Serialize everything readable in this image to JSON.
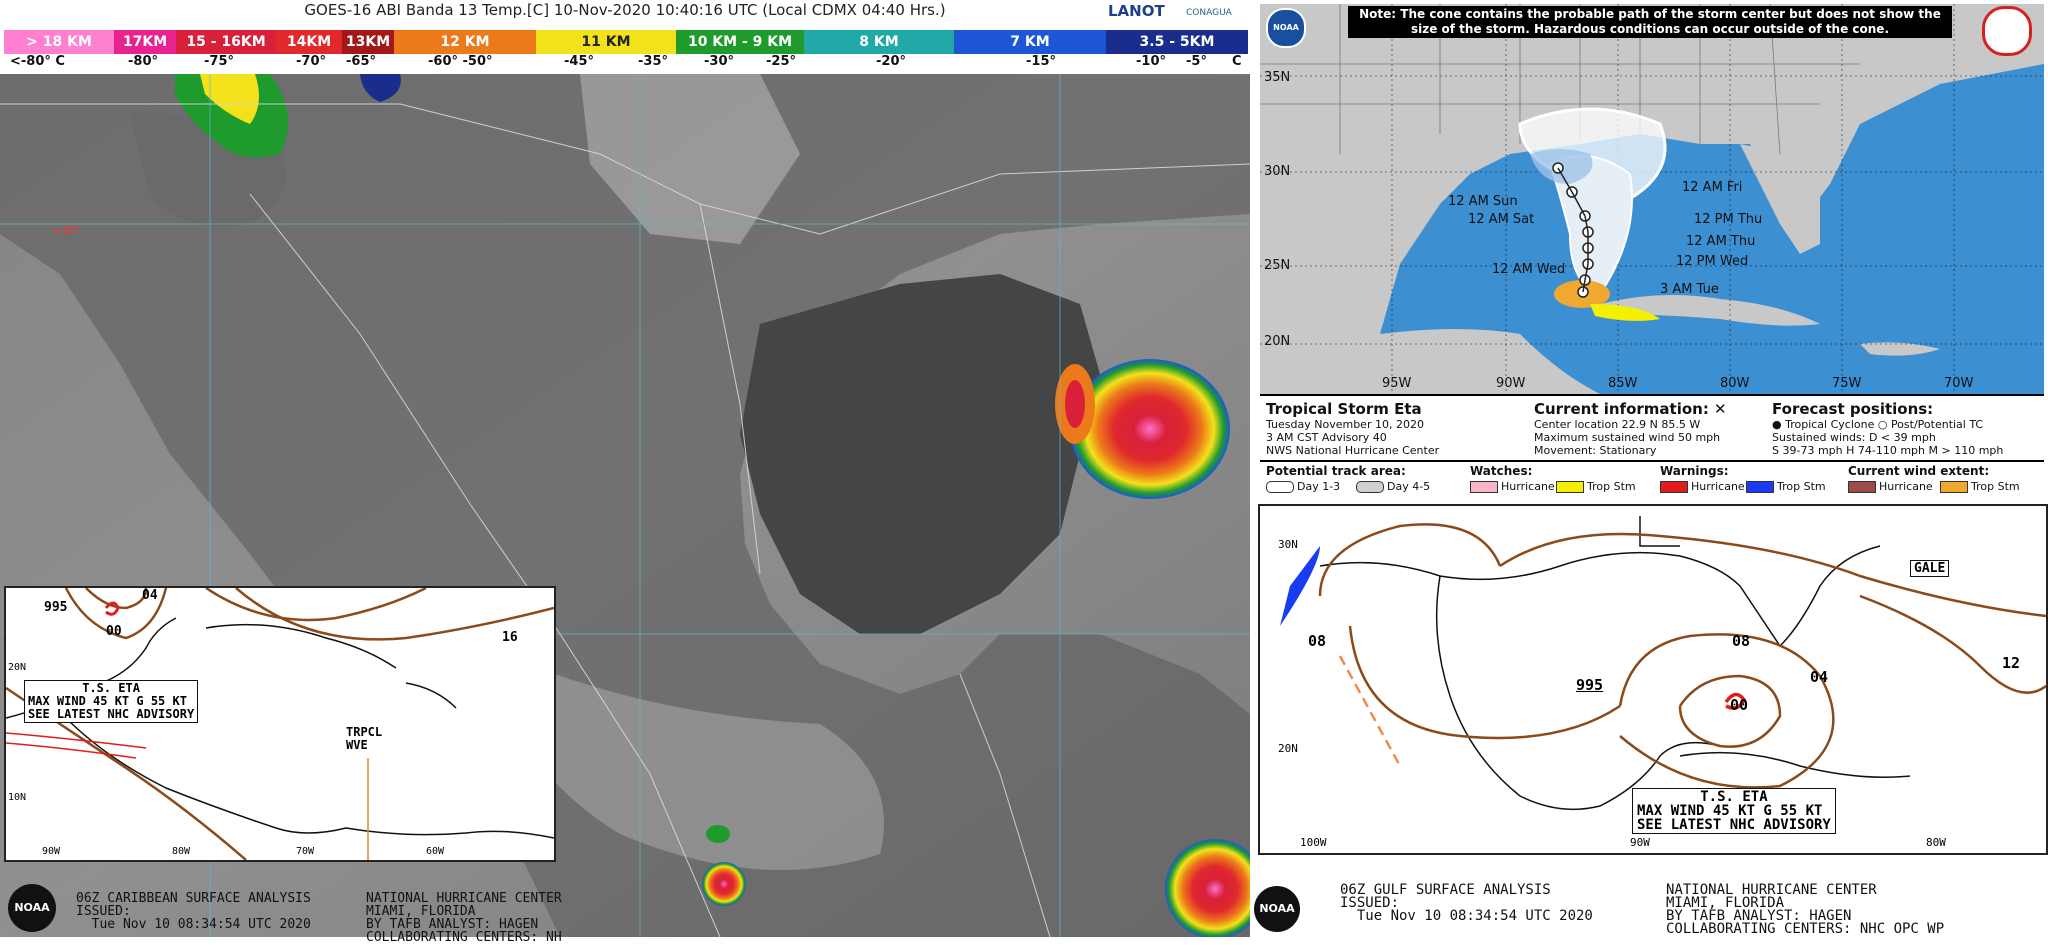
{
  "goes": {
    "title": "GOES-16 ABI Banda 13 Temp.[C] 10-Nov-2020 10:40:16 UTC (Local CDMX  04:40 Hrs.)",
    "logos": [
      "LANOT",
      "CONAGUA"
    ],
    "scale_segments": [
      {
        "label": "> 18 KM",
        "color": "#ff7fd0"
      },
      {
        "label": "17KM",
        "color": "#e8238f"
      },
      {
        "label": "15 - 16KM",
        "color": "#d8203a"
      },
      {
        "label": "14KM",
        "color": "#e0282d"
      },
      {
        "label": "13KM",
        "color": "#a21818"
      },
      {
        "label": "12 KM",
        "color": "#ec7a1a"
      },
      {
        "label": "11 KM",
        "color": "#f3e21a"
      },
      {
        "label": "10 KM - 9 KM",
        "color": "#1f9a2d"
      },
      {
        "label": "8 KM",
        "color": "#23a8a8"
      },
      {
        "label": "7 KM",
        "color": "#1e57d6"
      },
      {
        "label": "3.5 - 5KM",
        "color": "#1a2c8c"
      }
    ],
    "temps": [
      "<-80° C",
      "-80°",
      "-75°",
      "-70°",
      "-65°",
      "-60° -50°",
      "-45°",
      "-35°",
      "-30°",
      "-25°",
      "-20°",
      "-15°",
      "-10°",
      "-5°",
      "C"
    ],
    "map_label": "+30°"
  },
  "caribbean": {
    "labels": [
      "995",
      "04",
      "00",
      "16",
      "TRPCL WVE"
    ],
    "storm_box": [
      "T.S. ETA",
      "MAX WIND 45 KT G 55 KT",
      "SEE LATEST NHC ADVISORY"
    ],
    "lon_labels": [
      "90W",
      "80W",
      "70W",
      "60W"
    ],
    "lat_labels": [
      "20N",
      "10N"
    ],
    "footer_left": "06Z CARIBBEAN SURFACE ANALYSIS\nISSUED:\n  Tue Nov 10 08:34:54 UTC 2020",
    "footer_right": "NATIONAL HURRICANE CENTER\nMIAMI, FLORIDA\nBY TAFB ANALYST: HAGEN\nCOLLABORATING CENTERS: NH"
  },
  "cone": {
    "note": "Note: The cone contains the probable path of the storm center but does not show the size of the storm. Hazardous conditions can occur outside of the cone.",
    "lat_labels": [
      "35N",
      "30N",
      "25N",
      "20N"
    ],
    "lon_labels": [
      "95W",
      "90W",
      "85W",
      "80W",
      "75W",
      "70W"
    ],
    "forecast_labels": [
      "12 AM Fri",
      "12 AM Sun",
      "12 AM Sat",
      "12 PM Thu",
      "12 AM Thu",
      "12 PM Wed",
      "12 AM Wed",
      "3 AM Tue"
    ],
    "storm_name": "Tropical Storm Eta",
    "storm_lines": [
      "Tuesday November 10, 2020",
      "3 AM CST Advisory 40",
      "NWS National Hurricane Center"
    ],
    "current_title": "Current information: ✕",
    "current_lines": [
      "Center location 22.9 N 85.5 W",
      "Maximum sustained wind 50 mph",
      "Movement: Stationary"
    ],
    "forecast_title": "Forecast positions:",
    "forecast_lines": [
      "● Tropical Cyclone   ○ Post/Potential TC",
      "Sustained winds:     D < 39 mph",
      "S 39-73 mph  H 74-110 mph  M > 110 mph"
    ],
    "track_title": "Potential track area:",
    "track_items": [
      "Day 1-3",
      "Day 4-5"
    ],
    "watches_title": "Watches:",
    "watches": [
      {
        "label": "Hurricane",
        "color": "#f7b6c8"
      },
      {
        "label": "Trop Stm",
        "color": "#f5f000"
      }
    ],
    "warnings_title": "Warnings:",
    "warnings": [
      {
        "label": "Hurricane",
        "color": "#e21b1b"
      },
      {
        "label": "Trop Stm",
        "color": "#1a3cf0"
      }
    ],
    "wind_title": "Current wind extent:",
    "wind": [
      {
        "label": "Hurricane",
        "color": "#9c4a4a"
      },
      {
        "label": "Trop Stm",
        "color": "#f0a830"
      }
    ]
  },
  "gulf": {
    "labels": [
      "30N",
      "08",
      "08",
      "04",
      "12",
      "995",
      "00",
      "20N",
      "GALE"
    ],
    "storm_box": [
      "T.S. ETA",
      "MAX WIND 45 KT G 55 KT",
      "SEE LATEST NHC ADVISORY"
    ],
    "lon_labels": [
      "100W",
      "90W",
      "80W"
    ],
    "footer_left": "06Z GULF SURFACE ANALYSIS\nISSUED:\n  Tue Nov 10 08:34:54 UTC 2020",
    "footer_right": "NATIONAL HURRICANE CENTER\nMIAMI, FLORIDA\nBY TAFB ANALYST: HAGEN\nCOLLABORATING CENTERS: NHC OPC WP"
  },
  "noaa": "NOAA"
}
